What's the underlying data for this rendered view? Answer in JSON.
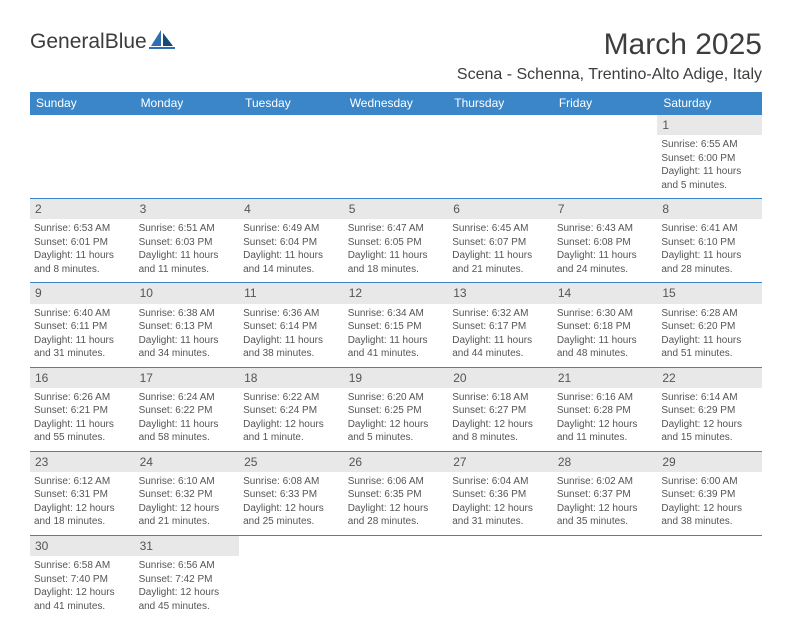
{
  "brand": {
    "name": "GeneralBlue"
  },
  "title": "March 2025",
  "location": "Scena - Schenna, Trentino-Alto Adige, Italy",
  "colors": {
    "header_bg": "#3a86c8",
    "header_text": "#ffffff",
    "border": "#3a86c8",
    "daynum_bg": "#e8e8e8",
    "text": "#555555",
    "page_bg": "#ffffff",
    "logo_text": "#3c3c3c",
    "logo_accent": "#2f6fb0"
  },
  "typography": {
    "title_fontsize": 30,
    "location_fontsize": 16,
    "weekday_fontsize": 12,
    "daynum_fontsize": 12,
    "cell_fontsize": 10,
    "logo_fontsize": 21
  },
  "weekdays": [
    "Sunday",
    "Monday",
    "Tuesday",
    "Wednesday",
    "Thursday",
    "Friday",
    "Saturday"
  ],
  "grid": [
    [
      null,
      null,
      null,
      null,
      null,
      null,
      {
        "n": "1",
        "sunrise": "6:55 AM",
        "sunset": "6:00 PM",
        "daylight": "11 hours and 5 minutes."
      }
    ],
    [
      {
        "n": "2",
        "sunrise": "6:53 AM",
        "sunset": "6:01 PM",
        "daylight": "11 hours and 8 minutes."
      },
      {
        "n": "3",
        "sunrise": "6:51 AM",
        "sunset": "6:03 PM",
        "daylight": "11 hours and 11 minutes."
      },
      {
        "n": "4",
        "sunrise": "6:49 AM",
        "sunset": "6:04 PM",
        "daylight": "11 hours and 14 minutes."
      },
      {
        "n": "5",
        "sunrise": "6:47 AM",
        "sunset": "6:05 PM",
        "daylight": "11 hours and 18 minutes."
      },
      {
        "n": "6",
        "sunrise": "6:45 AM",
        "sunset": "6:07 PM",
        "daylight": "11 hours and 21 minutes."
      },
      {
        "n": "7",
        "sunrise": "6:43 AM",
        "sunset": "6:08 PM",
        "daylight": "11 hours and 24 minutes."
      },
      {
        "n": "8",
        "sunrise": "6:41 AM",
        "sunset": "6:10 PM",
        "daylight": "11 hours and 28 minutes."
      }
    ],
    [
      {
        "n": "9",
        "sunrise": "6:40 AM",
        "sunset": "6:11 PM",
        "daylight": "11 hours and 31 minutes."
      },
      {
        "n": "10",
        "sunrise": "6:38 AM",
        "sunset": "6:13 PM",
        "daylight": "11 hours and 34 minutes."
      },
      {
        "n": "11",
        "sunrise": "6:36 AM",
        "sunset": "6:14 PM",
        "daylight": "11 hours and 38 minutes."
      },
      {
        "n": "12",
        "sunrise": "6:34 AM",
        "sunset": "6:15 PM",
        "daylight": "11 hours and 41 minutes."
      },
      {
        "n": "13",
        "sunrise": "6:32 AM",
        "sunset": "6:17 PM",
        "daylight": "11 hours and 44 minutes."
      },
      {
        "n": "14",
        "sunrise": "6:30 AM",
        "sunset": "6:18 PM",
        "daylight": "11 hours and 48 minutes."
      },
      {
        "n": "15",
        "sunrise": "6:28 AM",
        "sunset": "6:20 PM",
        "daylight": "11 hours and 51 minutes."
      }
    ],
    [
      {
        "n": "16",
        "sunrise": "6:26 AM",
        "sunset": "6:21 PM",
        "daylight": "11 hours and 55 minutes."
      },
      {
        "n": "17",
        "sunrise": "6:24 AM",
        "sunset": "6:22 PM",
        "daylight": "11 hours and 58 minutes."
      },
      {
        "n": "18",
        "sunrise": "6:22 AM",
        "sunset": "6:24 PM",
        "daylight": "12 hours and 1 minute."
      },
      {
        "n": "19",
        "sunrise": "6:20 AM",
        "sunset": "6:25 PM",
        "daylight": "12 hours and 5 minutes."
      },
      {
        "n": "20",
        "sunrise": "6:18 AM",
        "sunset": "6:27 PM",
        "daylight": "12 hours and 8 minutes."
      },
      {
        "n": "21",
        "sunrise": "6:16 AM",
        "sunset": "6:28 PM",
        "daylight": "12 hours and 11 minutes."
      },
      {
        "n": "22",
        "sunrise": "6:14 AM",
        "sunset": "6:29 PM",
        "daylight": "12 hours and 15 minutes."
      }
    ],
    [
      {
        "n": "23",
        "sunrise": "6:12 AM",
        "sunset": "6:31 PM",
        "daylight": "12 hours and 18 minutes."
      },
      {
        "n": "24",
        "sunrise": "6:10 AM",
        "sunset": "6:32 PM",
        "daylight": "12 hours and 21 minutes."
      },
      {
        "n": "25",
        "sunrise": "6:08 AM",
        "sunset": "6:33 PM",
        "daylight": "12 hours and 25 minutes."
      },
      {
        "n": "26",
        "sunrise": "6:06 AM",
        "sunset": "6:35 PM",
        "daylight": "12 hours and 28 minutes."
      },
      {
        "n": "27",
        "sunrise": "6:04 AM",
        "sunset": "6:36 PM",
        "daylight": "12 hours and 31 minutes."
      },
      {
        "n": "28",
        "sunrise": "6:02 AM",
        "sunset": "6:37 PM",
        "daylight": "12 hours and 35 minutes."
      },
      {
        "n": "29",
        "sunrise": "6:00 AM",
        "sunset": "6:39 PM",
        "daylight": "12 hours and 38 minutes."
      }
    ],
    [
      {
        "n": "30",
        "sunrise": "6:58 AM",
        "sunset": "7:40 PM",
        "daylight": "12 hours and 41 minutes."
      },
      {
        "n": "31",
        "sunrise": "6:56 AM",
        "sunset": "7:42 PM",
        "daylight": "12 hours and 45 minutes."
      },
      null,
      null,
      null,
      null,
      null
    ]
  ],
  "labels": {
    "sunrise": "Sunrise: ",
    "sunset": "Sunset: ",
    "daylight": "Daylight: "
  }
}
